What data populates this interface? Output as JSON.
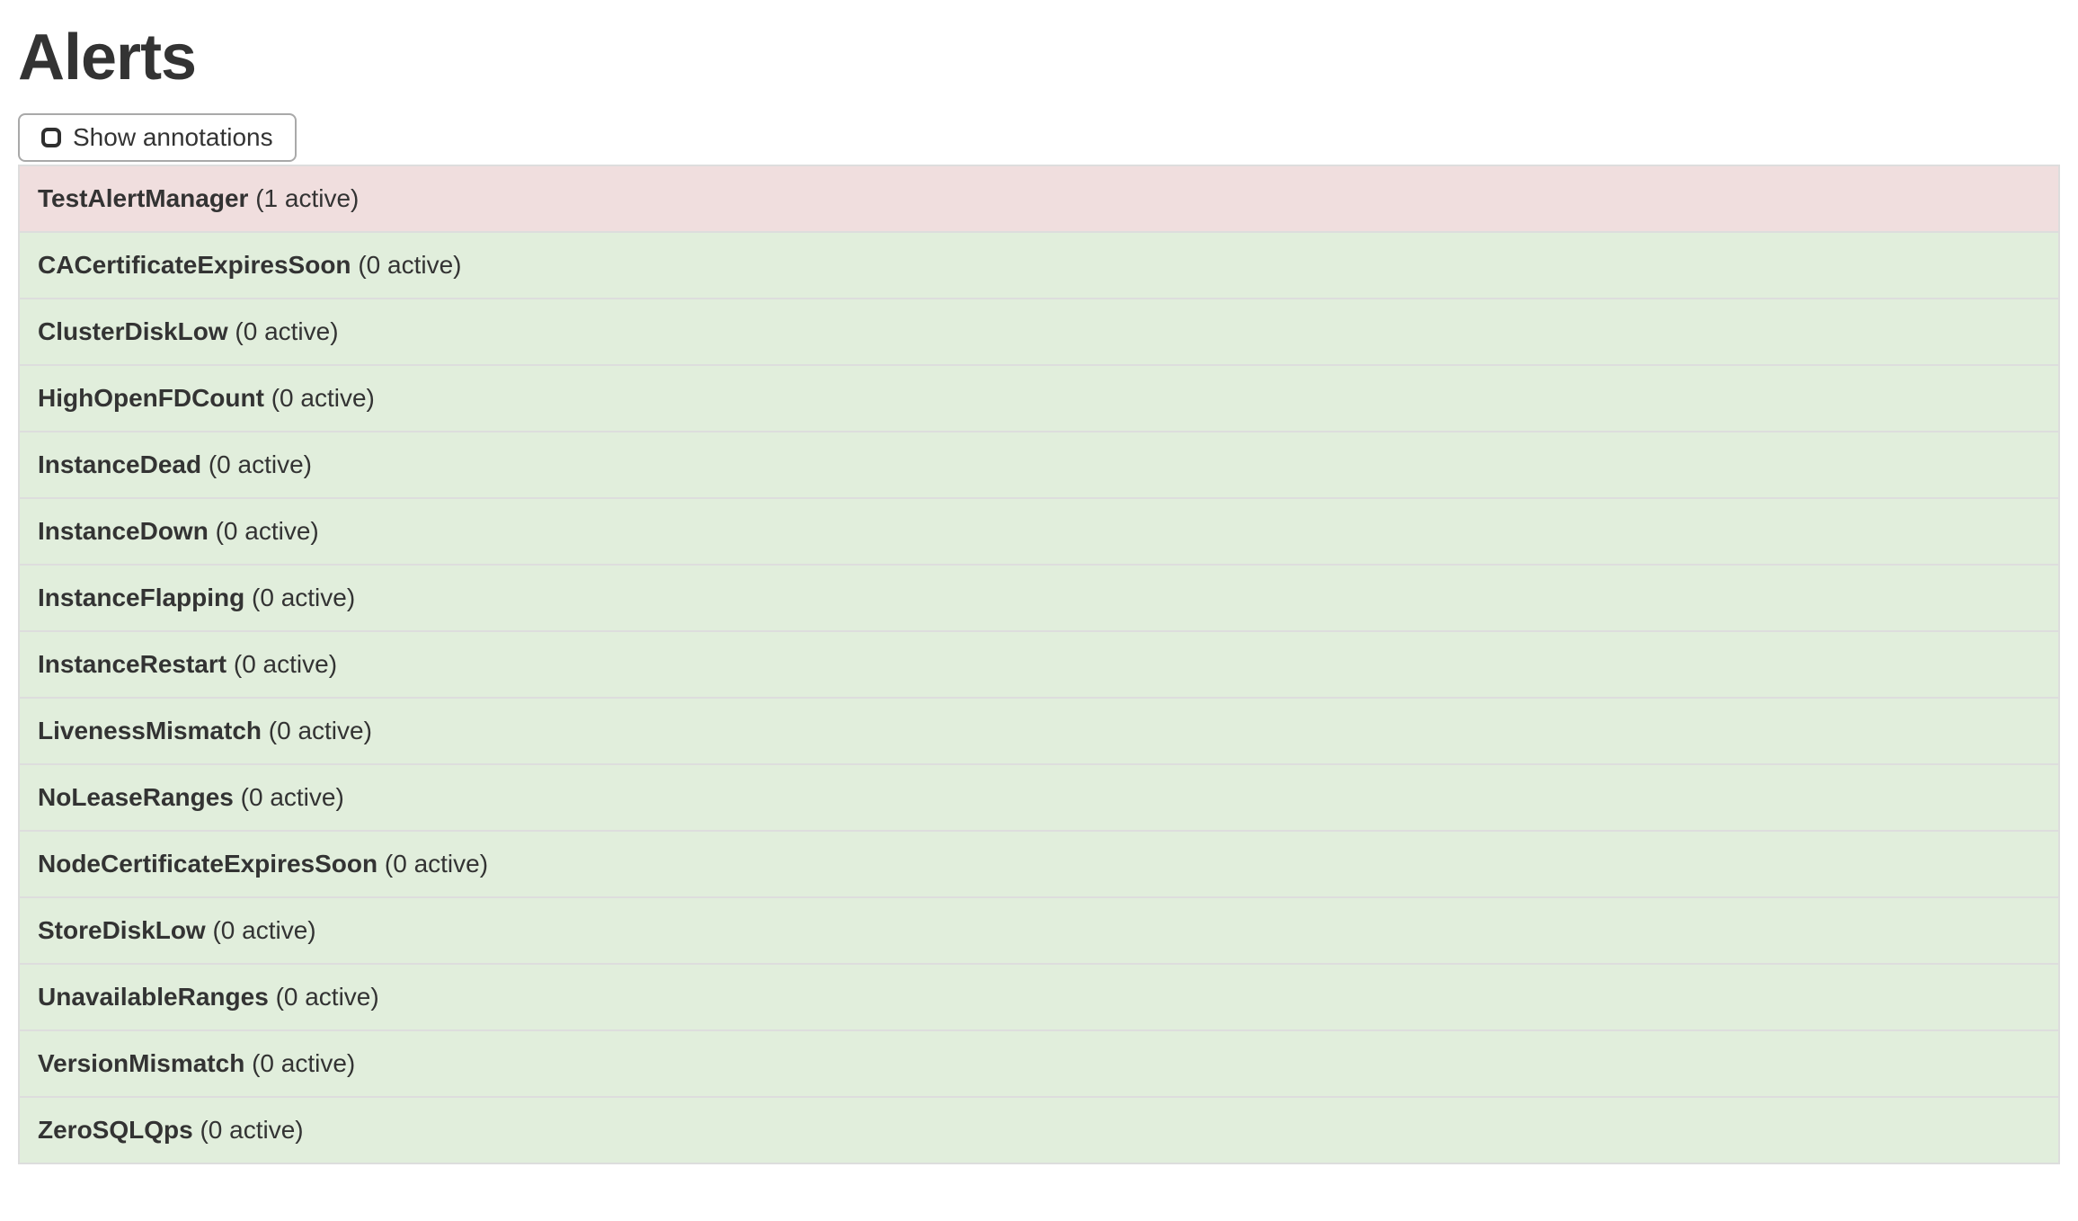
{
  "page": {
    "title": "Alerts"
  },
  "toolbar": {
    "show_annotations_label": "Show annotations",
    "show_annotations_checked": false
  },
  "alerts": {
    "rows": [
      {
        "name": "TestAlertManager",
        "active_count": 1,
        "active_label": "(1 active)",
        "state": "firing"
      },
      {
        "name": "CACertificateExpiresSoon",
        "active_count": 0,
        "active_label": "(0 active)",
        "state": "inactive"
      },
      {
        "name": "ClusterDiskLow",
        "active_count": 0,
        "active_label": "(0 active)",
        "state": "inactive"
      },
      {
        "name": "HighOpenFDCount",
        "active_count": 0,
        "active_label": "(0 active)",
        "state": "inactive"
      },
      {
        "name": "InstanceDead",
        "active_count": 0,
        "active_label": "(0 active)",
        "state": "inactive"
      },
      {
        "name": "InstanceDown",
        "active_count": 0,
        "active_label": "(0 active)",
        "state": "inactive"
      },
      {
        "name": "InstanceFlapping",
        "active_count": 0,
        "active_label": "(0 active)",
        "state": "inactive"
      },
      {
        "name": "InstanceRestart",
        "active_count": 0,
        "active_label": "(0 active)",
        "state": "inactive"
      },
      {
        "name": "LivenessMismatch",
        "active_count": 0,
        "active_label": "(0 active)",
        "state": "inactive"
      },
      {
        "name": "NoLeaseRanges",
        "active_count": 0,
        "active_label": "(0 active)",
        "state": "inactive"
      },
      {
        "name": "NodeCertificateExpiresSoon",
        "active_count": 0,
        "active_label": "(0 active)",
        "state": "inactive"
      },
      {
        "name": "StoreDiskLow",
        "active_count": 0,
        "active_label": "(0 active)",
        "state": "inactive"
      },
      {
        "name": "UnavailableRanges",
        "active_count": 0,
        "active_label": "(0 active)",
        "state": "inactive"
      },
      {
        "name": "VersionMismatch",
        "active_count": 0,
        "active_label": "(0 active)",
        "state": "inactive"
      },
      {
        "name": "ZeroSQLQps",
        "active_count": 0,
        "active_label": "(0 active)",
        "state": "inactive"
      }
    ]
  },
  "colors": {
    "firing_bg": "#f0dede",
    "inactive_bg": "#e1eedc",
    "row_border": "#dddddd",
    "button_border": "#a9a9a9",
    "text": "#333333"
  }
}
